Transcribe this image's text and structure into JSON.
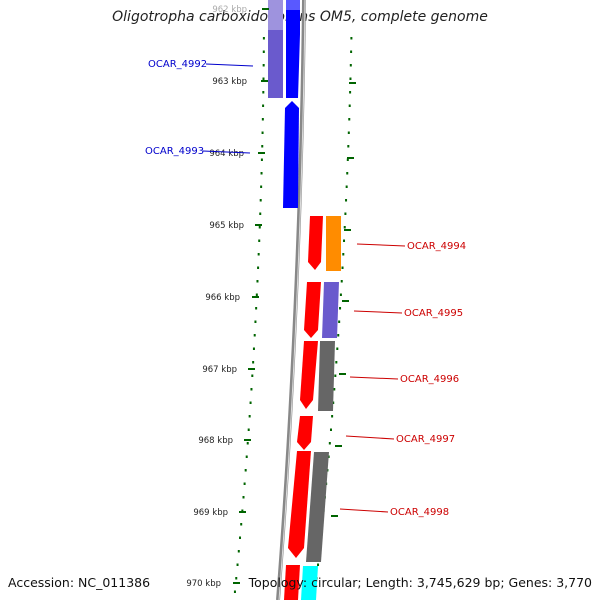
{
  "title": "Oligotropha carboxidovorans OM5, complete genome",
  "footer": {
    "accession": "Accession: NC_011386",
    "summary": "Topology: circular; Length: 3,745,629 bp; Genes: 3,770"
  },
  "ticks": [
    {
      "label": "962 kbp",
      "faded": true
    },
    {
      "label": "963 kbp",
      "faded": false
    },
    {
      "label": "964 kbp",
      "faded": false
    },
    {
      "label": "965 kbp",
      "faded": false
    },
    {
      "label": "966 kbp",
      "faded": false
    },
    {
      "label": "967 kbp",
      "faded": false
    },
    {
      "label": "968 kbp",
      "faded": false
    },
    {
      "label": "969 kbp",
      "faded": false
    },
    {
      "label": "970 kbp",
      "faded": false
    }
  ],
  "genes": [
    {
      "label": "OCAR_4992",
      "strand": "left",
      "color": "#0000cc"
    },
    {
      "label": "OCAR_4993",
      "strand": "left",
      "color": "#0000cc"
    },
    {
      "label": "OCAR_4994",
      "strand": "right",
      "color": "#cc0000"
    },
    {
      "label": "OCAR_4995",
      "strand": "right",
      "color": "#cc0000"
    },
    {
      "label": "OCAR_4996",
      "strand": "right",
      "color": "#cc0000"
    },
    {
      "label": "OCAR_4997",
      "strand": "right",
      "color": "#cc0000"
    },
    {
      "label": "OCAR_4998",
      "strand": "right",
      "color": "#cc0000"
    }
  ],
  "colors": {
    "forward_cds": "#ff0000",
    "reverse_cds": "#0000ff",
    "cog_purple": "#6a5acd",
    "cog_orange": "#ff8c00",
    "cog_gray": "#666666",
    "cog_cyan": "#00ffff",
    "backbone": "#888888",
    "tick_color": "#006400"
  }
}
